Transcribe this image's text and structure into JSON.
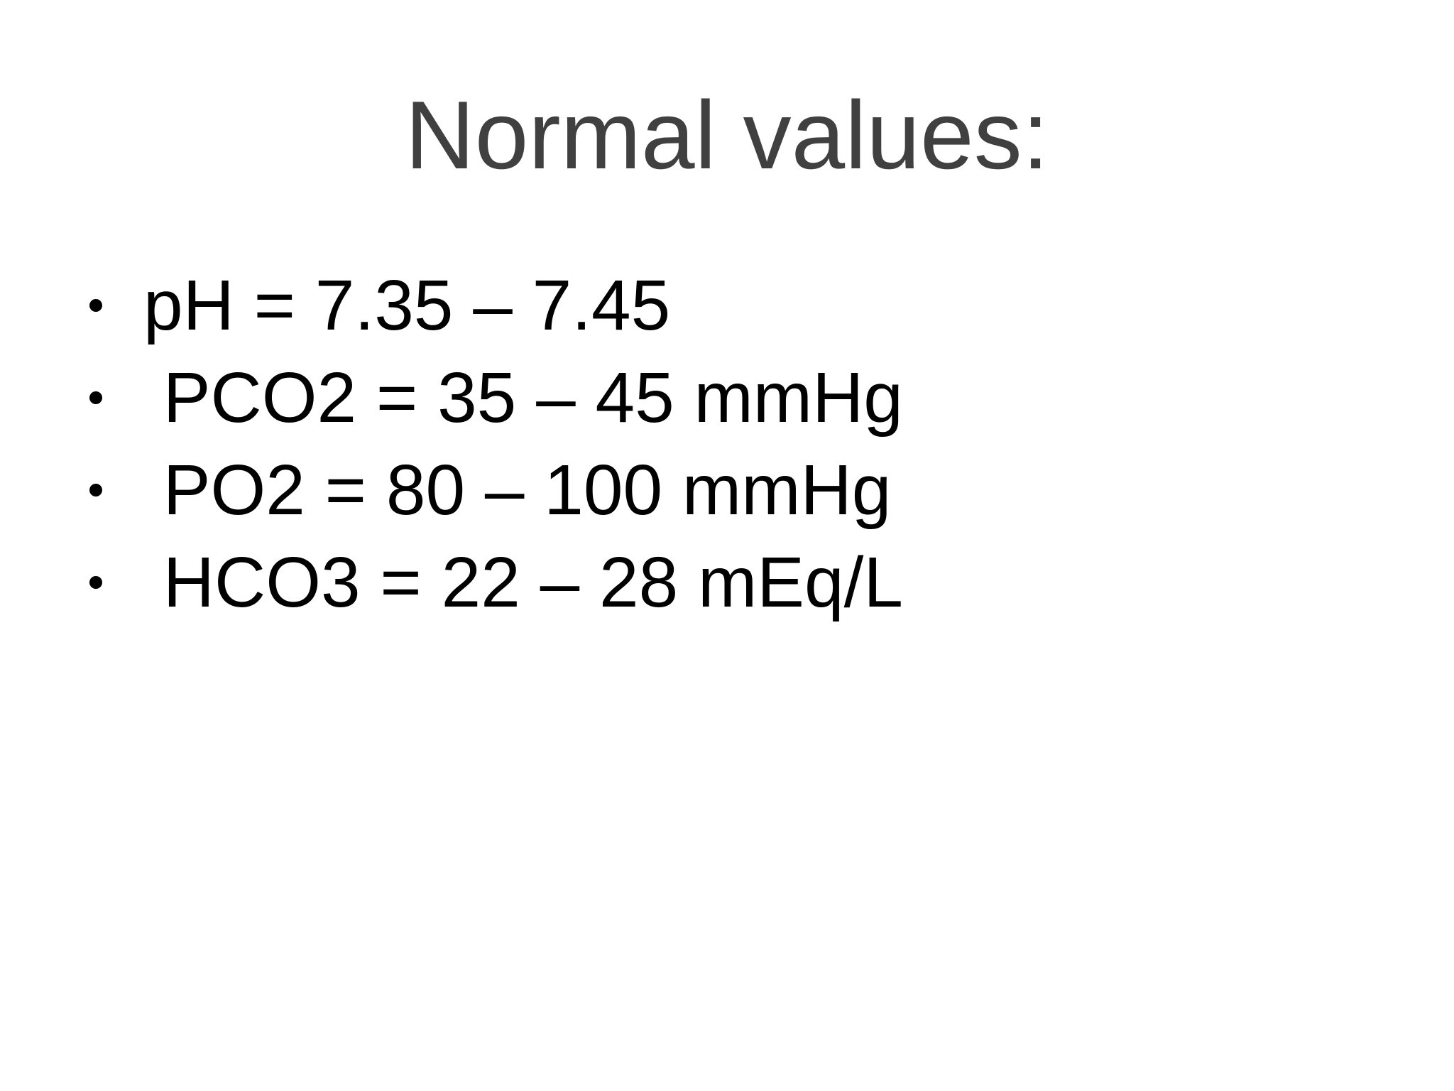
{
  "slide": {
    "title": "Normal values:",
    "bullets": [
      "pH = 7.35 – 7.45",
      " PCO2 = 35 – 45 mmHg",
      " PO2 = 80 – 100 mmHg",
      " HCO3 = 22 – 28 mEq/L"
    ]
  }
}
